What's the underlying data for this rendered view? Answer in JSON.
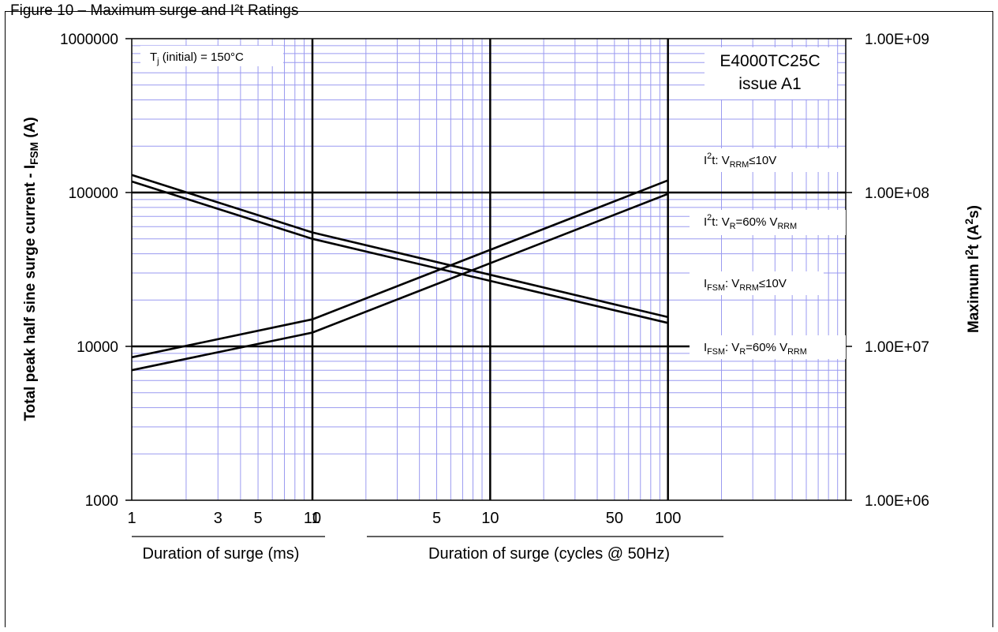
{
  "figure": {
    "caption": "Figure 10 – Maximum surge and I²t Ratings"
  },
  "colors": {
    "grid_minor": "#9a9af0",
    "grid_major": "#000000",
    "series": "#000000",
    "background": "#ffffff"
  },
  "chart_data": {
    "type": "line",
    "scale": {
      "x": "log",
      "y_left": "log",
      "y_right": "log"
    },
    "ylabel_left": "Total peak half sine surge current - I",
    "ylabel_left_sub": "FSM",
    "ylabel_left_unit": " (A)",
    "ylabel_right": "Maximum I",
    "ylabel_right_sup": "2",
    "ylabel_right_tail": "t (A",
    "ylabel_right_sup2": "2",
    "ylabel_right_end": "s)",
    "ylim_left": [
      1000,
      1000000
    ],
    "ylim_right": [
      1000000,
      1000000000
    ],
    "yticks_left": [
      "1000000",
      "100000",
      "10000",
      "1000"
    ],
    "yticks_right": [
      "1.00E+09",
      "1.00E+08",
      "1.00E+07",
      "1.00E+06"
    ],
    "x_segments": [
      {
        "xlabel": "Duration of surge (ms)",
        "unit": "ms",
        "range": [
          1,
          10
        ],
        "ticks": [
          "1",
          "3",
          "5",
          "10"
        ]
      },
      {
        "xlabel": "Duration of surge (cycles @ 50Hz)",
        "unit": "cycles",
        "range": [
          1,
          100
        ],
        "ticks": [
          "1",
          "5",
          "10",
          "50",
          "100"
        ]
      }
    ],
    "annotations": {
      "tj": {
        "pre": "T",
        "sub": "j",
        "post": " (initial) = 150°C"
      },
      "part": "E4000TC25C",
      "issue": "issue A1"
    },
    "series": [
      {
        "name": "I²t: V_RRM≤10V",
        "label_parts": [
          "I",
          "2",
          "t: V",
          "RRM",
          "≤10V"
        ],
        "axis": "right",
        "points": [
          {
            "segment": 0,
            "x": 1,
            "y": 8500000
          },
          {
            "segment": 0,
            "x": 10,
            "y": 15000000
          },
          {
            "segment": 1,
            "x": 1,
            "y": 15000000
          },
          {
            "segment": 1,
            "x": 100,
            "y": 120000000
          }
        ]
      },
      {
        "name": "I²t: V_R=60% V_RRM",
        "label_parts": [
          "I",
          "2",
          "t: V",
          "R",
          "=60% V",
          "RRM"
        ],
        "axis": "right",
        "points": [
          {
            "segment": 0,
            "x": 1,
            "y": 7000000
          },
          {
            "segment": 0,
            "x": 10,
            "y": 12300000
          },
          {
            "segment": 1,
            "x": 1,
            "y": 12300000
          },
          {
            "segment": 1,
            "x": 100,
            "y": 98000000
          }
        ]
      },
      {
        "name": "I_FSM: V_RRM≤10V",
        "label_parts": [
          "I",
          "FSM",
          ": V",
          "RRM",
          "≤10V"
        ],
        "axis": "left",
        "points": [
          {
            "segment": 0,
            "x": 1,
            "y": 130000
          },
          {
            "segment": 0,
            "x": 10,
            "y": 55000
          },
          {
            "segment": 1,
            "x": 1,
            "y": 55000
          },
          {
            "segment": 1,
            "x": 100,
            "y": 15500
          }
        ]
      },
      {
        "name": "I_FSM: V_R=60% V_RRM",
        "label_parts": [
          "I",
          "FSM",
          ": V",
          "R",
          "=60% V",
          "RRM"
        ],
        "axis": "left",
        "points": [
          {
            "segment": 0,
            "x": 1,
            "y": 118000
          },
          {
            "segment": 0,
            "x": 10,
            "y": 50000
          },
          {
            "segment": 1,
            "x": 1,
            "y": 50000
          },
          {
            "segment": 1,
            "x": 100,
            "y": 14200
          }
        ]
      }
    ]
  }
}
